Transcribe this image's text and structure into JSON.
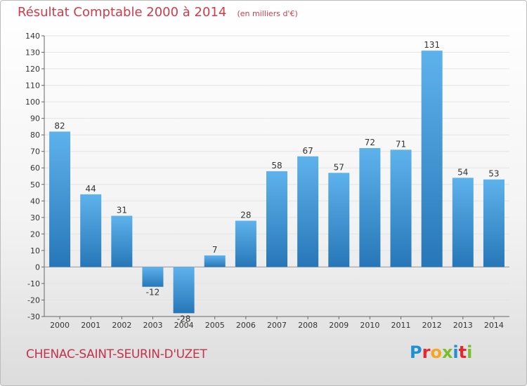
{
  "header": {
    "title": "Résultat Comptable 2000 à 2014",
    "subtitle": "(en milliers d'€)"
  },
  "footer": {
    "commune": "CHENAC-SAINT-SEURIN-D'UZET"
  },
  "brand": {
    "name": "Proxiti",
    "colors": [
      "#1f8fd6",
      "#e8262d",
      "#f5a623",
      "#7abf2b",
      "#1f8fd6",
      "#e8262d",
      "#7abf2b"
    ]
  },
  "colors": {
    "bar_top": "#5eb2ec",
    "bar_bottom": "#2777b8",
    "title": "#d23a49",
    "grid": "#e4e4e4",
    "axis": "#666666"
  },
  "chart_data": {
    "type": "bar",
    "title": "Résultat Comptable 2000 à 2014",
    "subtitle": "(en milliers d'€)",
    "categories": [
      "2000",
      "2001",
      "2002",
      "2003",
      "2004",
      "2005",
      "2006",
      "2007",
      "2008",
      "2009",
      "2010",
      "2011",
      "2012",
      "2013",
      "2014"
    ],
    "values": [
      82,
      44,
      31,
      -12,
      -28,
      7,
      28,
      58,
      67,
      57,
      72,
      71,
      131,
      54,
      53
    ],
    "value_labels": [
      "82",
      "44",
      "31",
      "-12",
      "-28",
      "7",
      "28",
      "58",
      "67",
      "57",
      "72",
      "71",
      "131",
      "54",
      "53"
    ],
    "ylim": [
      -30,
      140
    ],
    "yticks": [
      -30,
      -20,
      -10,
      0,
      10,
      20,
      30,
      40,
      50,
      60,
      70,
      80,
      90,
      100,
      110,
      120,
      130,
      140
    ],
    "grid": true,
    "legend": false
  }
}
